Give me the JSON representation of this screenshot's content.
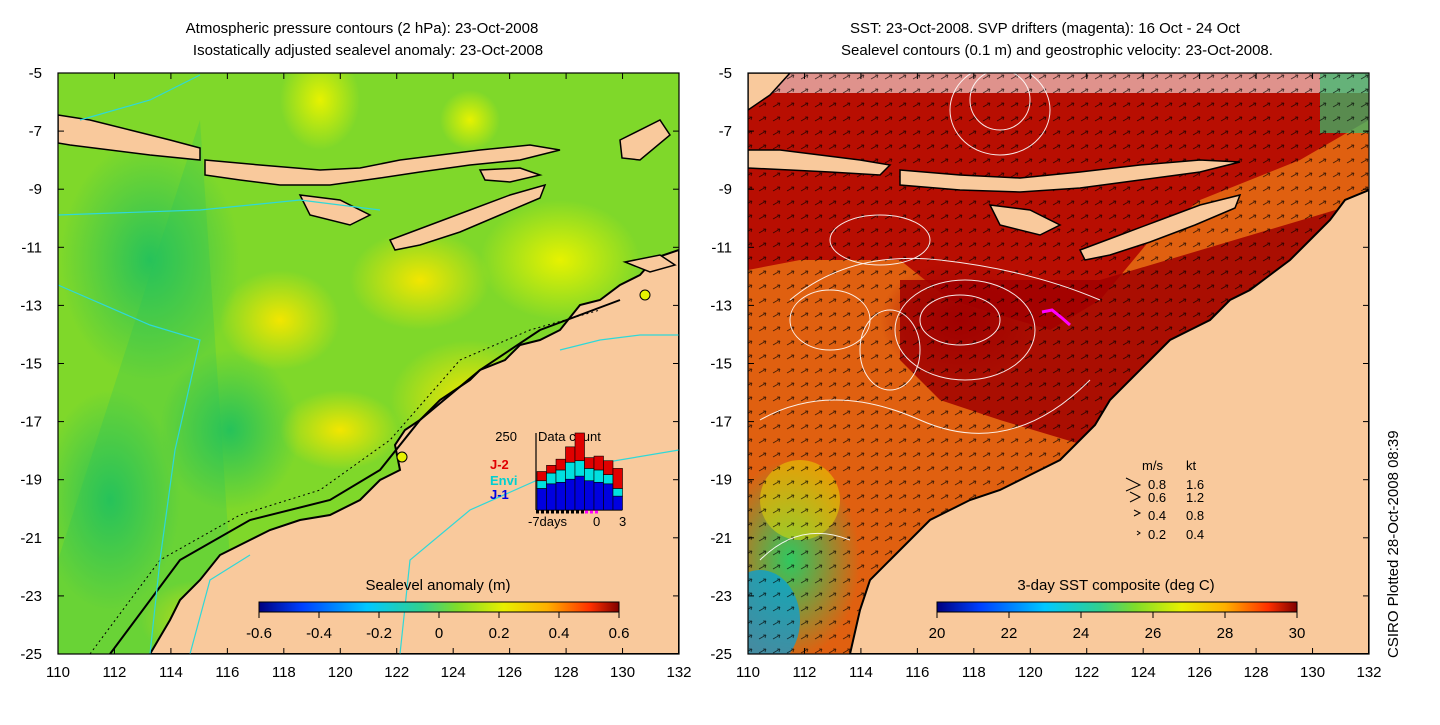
{
  "left_panel": {
    "title_line1": "Atmospheric pressure contours (2 hPa): 23-Oct-2008",
    "title_line2": "Isostatically adjusted sealevel anomaly: 23-Oct-2008",
    "colorbar": {
      "label": "Sealevel anomaly (m)",
      "ticks": [
        "-0.6",
        "-0.4",
        "-0.2",
        "0",
        "0.2",
        "0.4",
        "0.6"
      ]
    },
    "inset": {
      "title": "Data count",
      "ymax_label": "250",
      "x_labels": [
        "-7days",
        "0",
        "3"
      ],
      "legend": [
        {
          "label": "J-2",
          "color": "#e00000"
        },
        {
          "label": "Envi",
          "color": "#00e0e0"
        },
        {
          "label": "J-1",
          "color": "#0000e0"
        }
      ],
      "bars": [
        {
          "j1": 0.28,
          "envi": 0.1,
          "j2": 0.12
        },
        {
          "j1": 0.34,
          "envi": 0.14,
          "j2": 0.1
        },
        {
          "j1": 0.36,
          "envi": 0.16,
          "j2": 0.14
        },
        {
          "j1": 0.4,
          "envi": 0.22,
          "j2": 0.2
        },
        {
          "j1": 0.44,
          "envi": 0.2,
          "j2": 0.36
        },
        {
          "j1": 0.38,
          "envi": 0.16,
          "j2": 0.14
        },
        {
          "j1": 0.36,
          "envi": 0.16,
          "j2": 0.18
        },
        {
          "j1": 0.34,
          "envi": 0.12,
          "j2": 0.18
        },
        {
          "j1": 0.18,
          "envi": 0.1,
          "j2": 0.26
        }
      ]
    }
  },
  "right_panel": {
    "title_line1": "SST: 23-Oct-2008. SVP drifters (magenta): 16 Oct - 24 Oct",
    "title_line2": "Sealevel contours (0.1 m) and geostrophic velocity: 23-Oct-2008.",
    "colorbar": {
      "label": "3-day SST composite (deg C)",
      "ticks": [
        "20",
        "22",
        "24",
        "26",
        "28",
        "30"
      ]
    },
    "speed_legend": {
      "header": [
        "m/s",
        "kt"
      ],
      "rows": [
        [
          "0.8",
          "1.6"
        ],
        [
          "0.6",
          "1.2"
        ],
        [
          "0.4",
          "0.8"
        ],
        [
          "0.2",
          "0.4"
        ]
      ]
    }
  },
  "axes": {
    "x_ticks": [
      "110",
      "112",
      "114",
      "116",
      "118",
      "120",
      "122",
      "124",
      "126",
      "128",
      "130",
      "132"
    ],
    "y_ticks": [
      "-5",
      "-7",
      "-9",
      "-11",
      "-13",
      "-15",
      "-17",
      "-19",
      "-21",
      "-23",
      "-25"
    ]
  },
  "credit": "CSIRO Plotted 28-Oct-2008 08:39",
  "colors": {
    "land": "#f9c99c",
    "coast": "#000000",
    "pressure_contour": "#2fd8d8",
    "drifter": "#ff00ff"
  }
}
